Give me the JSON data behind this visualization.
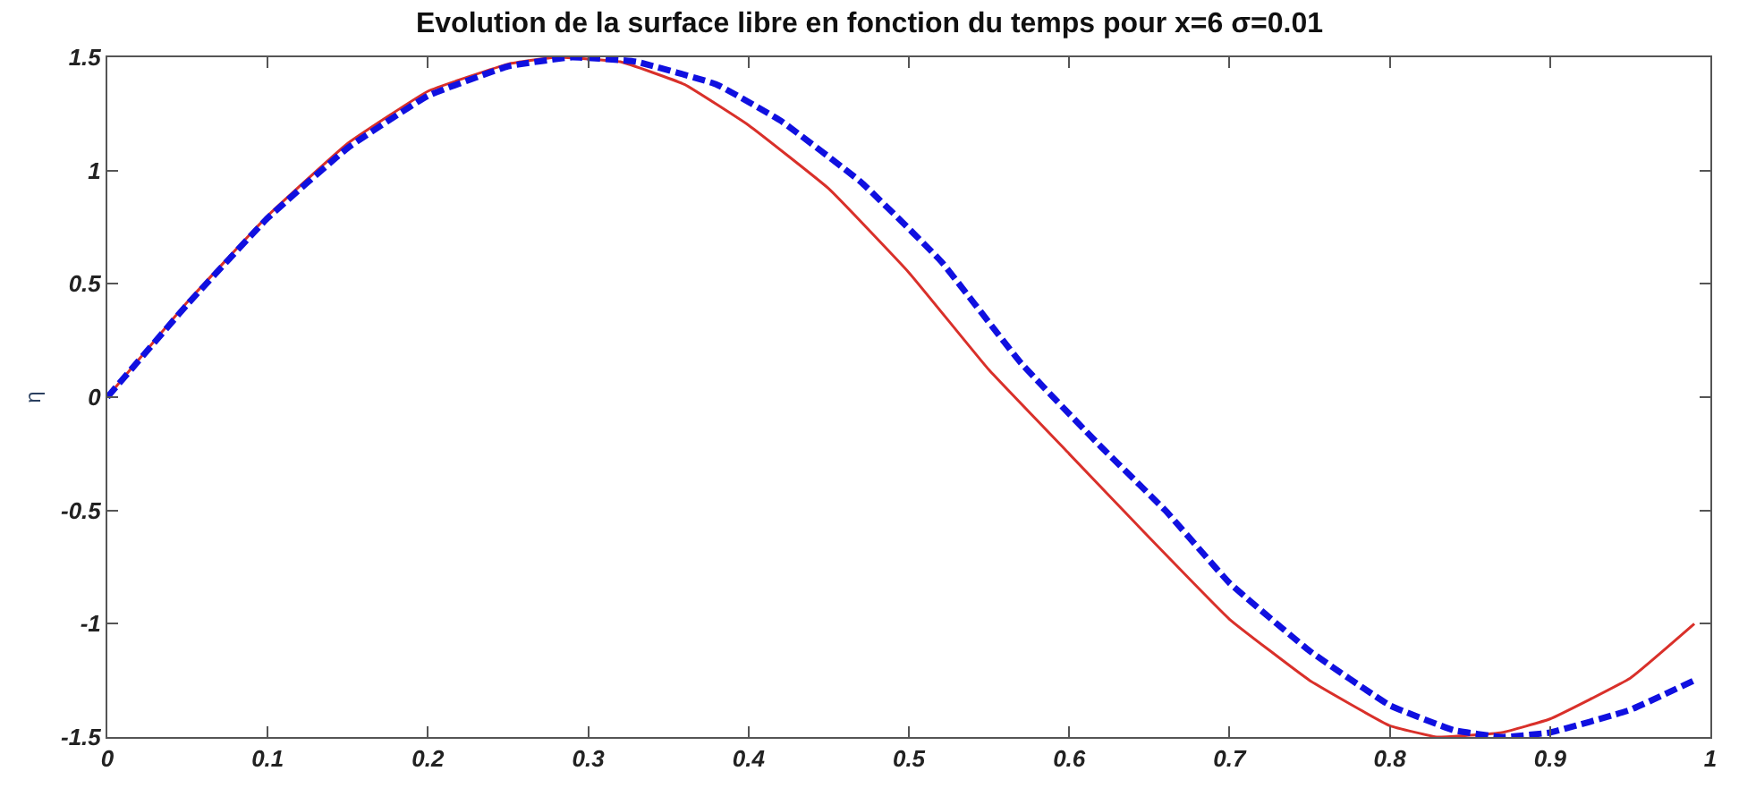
{
  "chart_data": {
    "type": "line",
    "title": "Evolution de la surface libre en fonction du temps pour x=6 σ=0.01",
    "ylabel": "η",
    "xlim": [
      0,
      1
    ],
    "xticks": [
      0,
      0.1,
      0.2,
      0.3,
      0.4,
      0.5,
      0.6,
      0.7,
      0.8,
      0.9,
      1
    ],
    "ylim": [
      -1.5,
      1.5
    ],
    "yticks": [
      -1.5,
      -1,
      -0.5,
      0,
      0.5,
      1,
      1.5
    ],
    "marker": "none",
    "series": [
      {
        "color": "#d9302a",
        "line_style": "solid",
        "x": [
          0,
          0.05,
          0.1,
          0.15,
          0.2,
          0.25,
          0.28,
          0.32,
          0.36,
          0.4,
          0.45,
          0.5,
          0.55,
          0.6,
          0.65,
          0.7,
          0.75,
          0.8,
          0.83,
          0.87,
          0.9,
          0.95,
          0.99
        ],
        "values": [
          0,
          0.42,
          0.8,
          1.12,
          1.35,
          1.47,
          1.5,
          1.48,
          1.38,
          1.2,
          0.92,
          0.55,
          0.12,
          -0.25,
          -0.62,
          -0.98,
          -1.25,
          -1.45,
          -1.5,
          -1.48,
          -1.42,
          -1.24,
          -1.0
        ]
      },
      {
        "color": "#1010e0",
        "line_style": "dashed",
        "x": [
          0,
          0.05,
          0.1,
          0.15,
          0.2,
          0.25,
          0.29,
          0.33,
          0.38,
          0.42,
          0.47,
          0.52,
          0.57,
          0.62,
          0.66,
          0.7,
          0.75,
          0.8,
          0.84,
          0.87,
          0.9,
          0.95,
          0.99
        ],
        "values": [
          0,
          0.41,
          0.79,
          1.1,
          1.33,
          1.46,
          1.5,
          1.48,
          1.38,
          1.22,
          0.95,
          0.6,
          0.15,
          -0.22,
          -0.5,
          -0.82,
          -1.12,
          -1.36,
          -1.47,
          -1.5,
          -1.48,
          -1.38,
          -1.25
        ]
      }
    ]
  }
}
